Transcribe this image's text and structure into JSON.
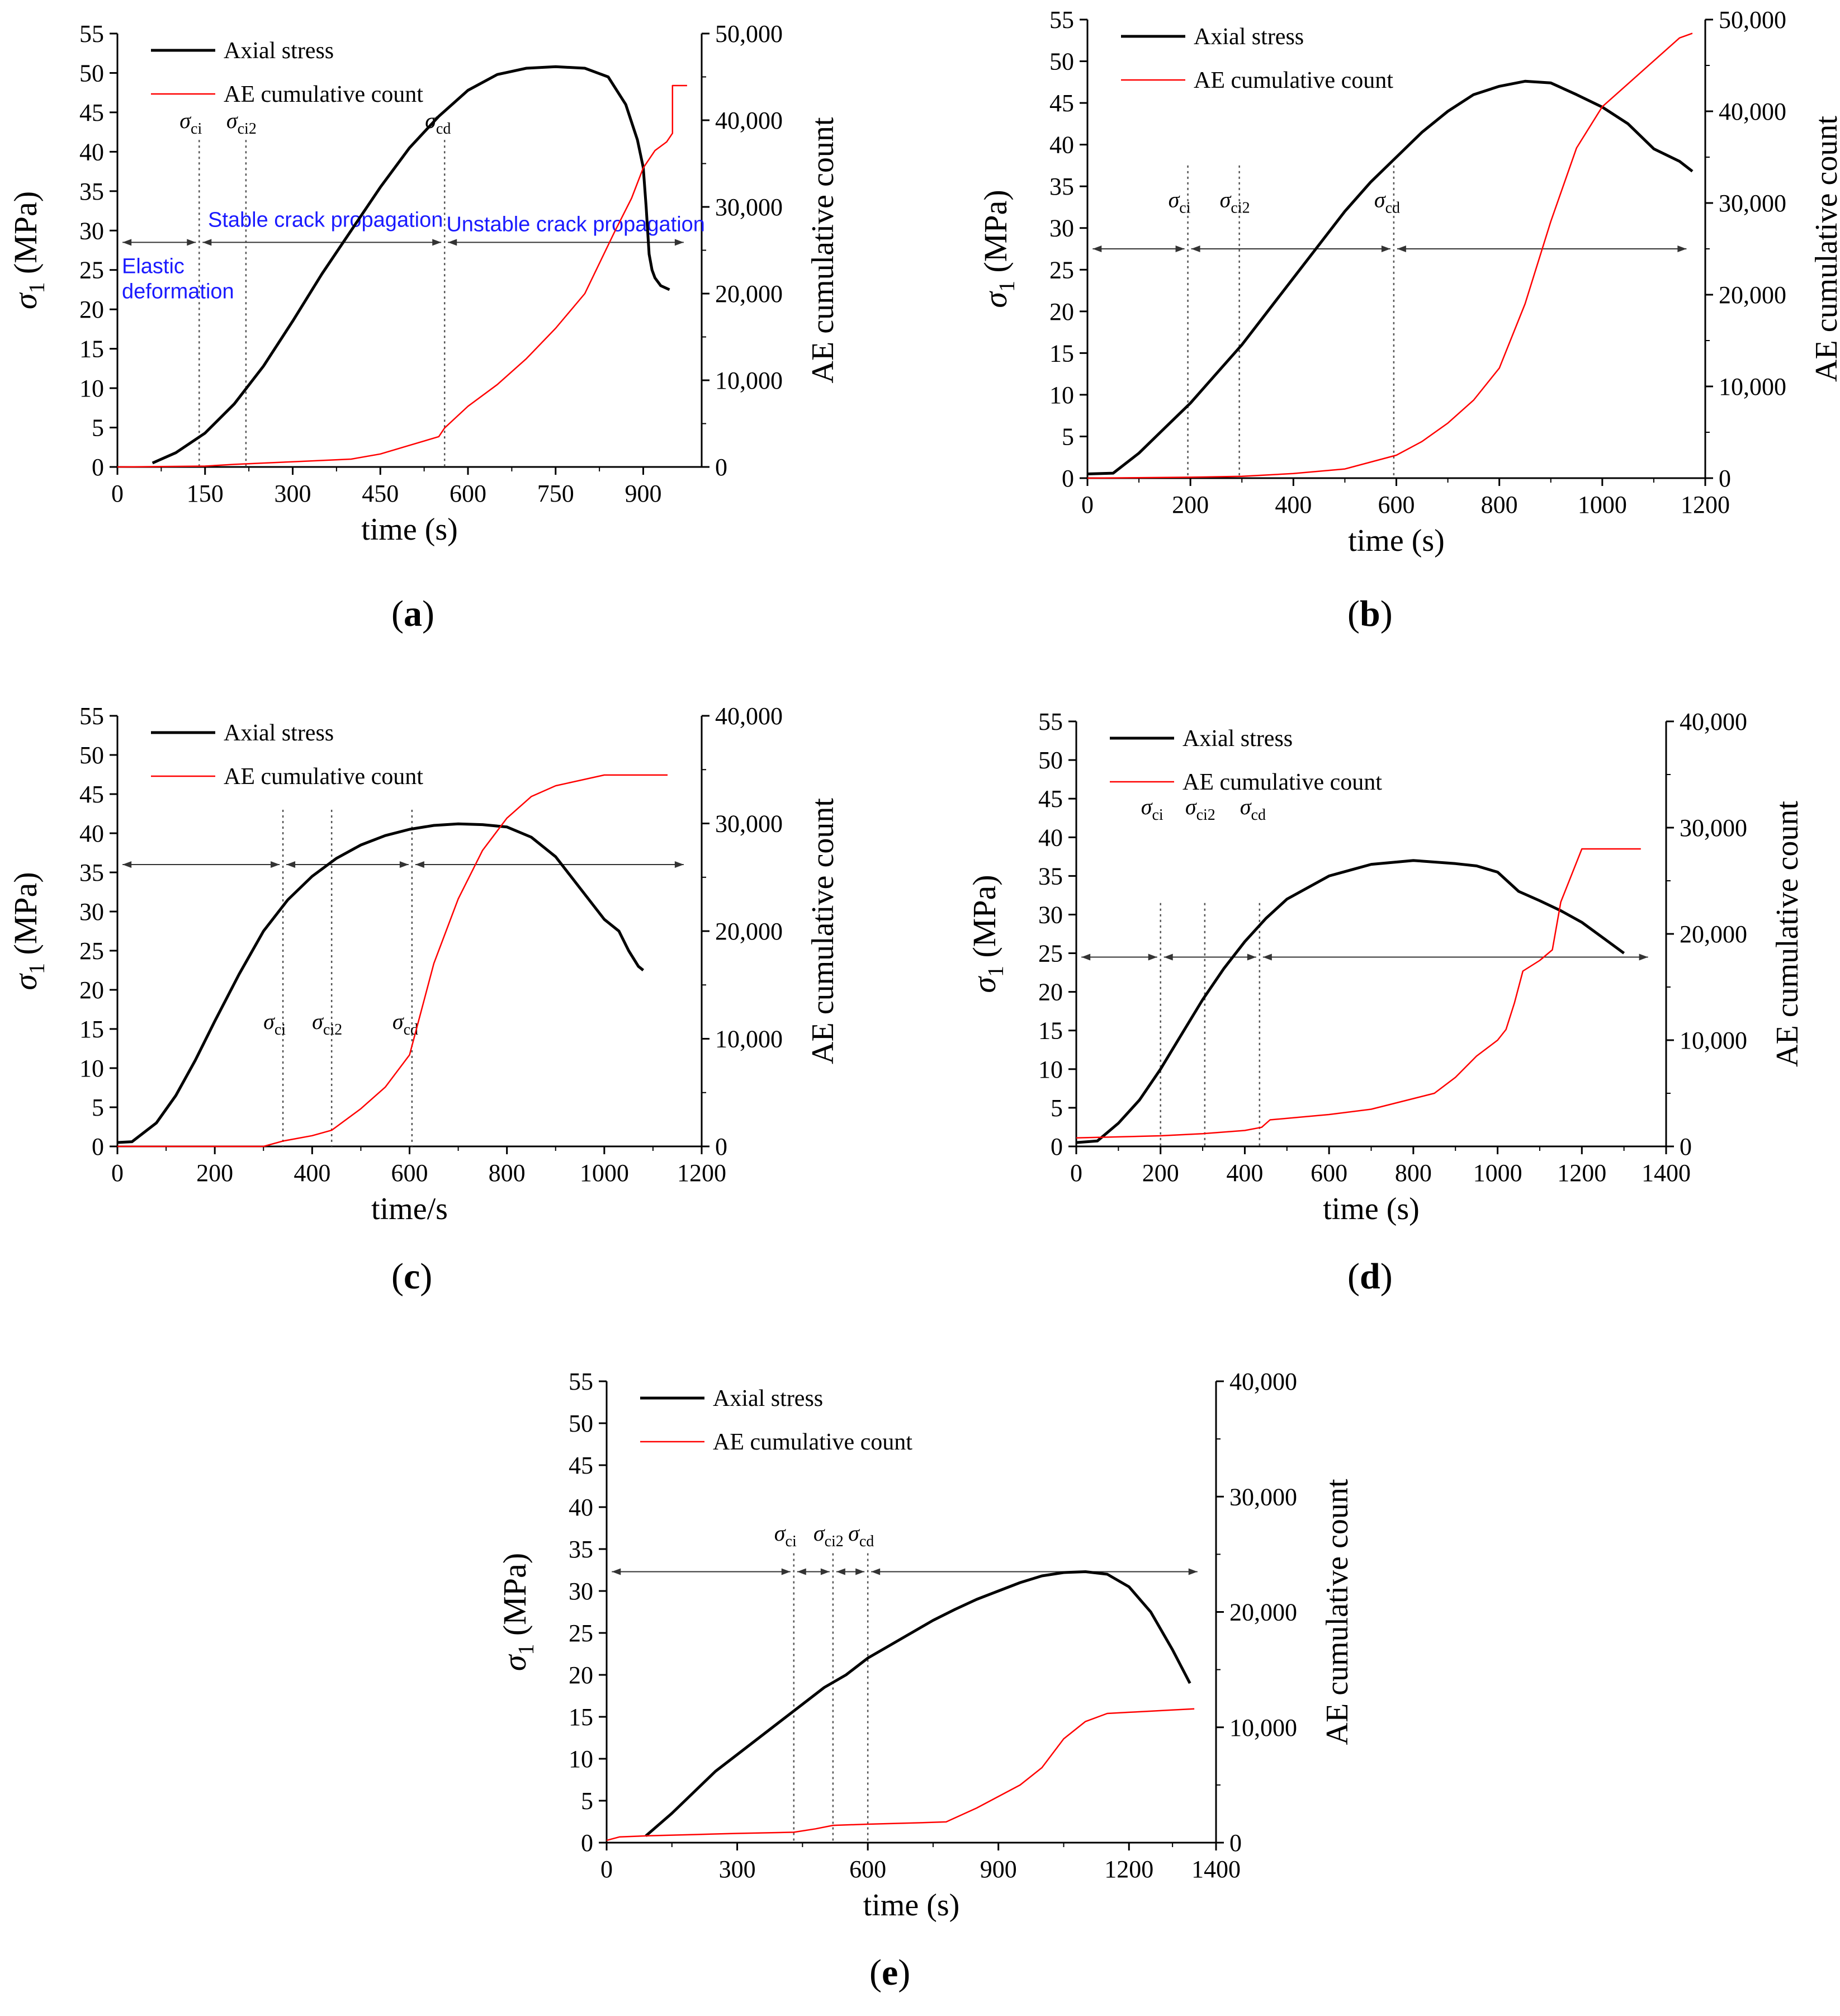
{
  "colors": {
    "stress": "#000000",
    "ae": "#ff0000",
    "annotation": "#1a1aff",
    "axis": "#000000"
  },
  "chart_data": [
    {
      "id": "a",
      "caption": "a",
      "type": "line",
      "xlabel": "time (s)",
      "ylabel_left": "σ1 (MPa)",
      "ylabel_left_symbol": "σ",
      "ylabel_left_sub": "1",
      "ylabel_left_unit": "(MPa)",
      "ylabel_right": "AE cumulative count",
      "xlim": [
        0,
        1000
      ],
      "xticks": [
        0,
        150,
        300,
        450,
        600,
        750,
        900
      ],
      "xtick_labels": [
        "0",
        "150",
        "300",
        "450",
        "600",
        "750",
        "900"
      ],
      "ylim_left": [
        0,
        55
      ],
      "yticks_left": [
        0,
        5,
        10,
        15,
        20,
        25,
        30,
        35,
        40,
        45,
        50,
        55
      ],
      "ylim_right": [
        0,
        50000
      ],
      "yticks_right": [
        0,
        10000,
        20000,
        30000,
        40000,
        50000
      ],
      "ytick_labels_right": [
        "0",
        "10,000",
        "20,000",
        "30,000",
        "40,000",
        "50,000"
      ],
      "legend": [
        "Axial stress",
        "AE cumulative count"
      ],
      "thresholds": [
        {
          "label": "σci",
          "symbol": "σ",
          "sub": "ci",
          "x": 140
        },
        {
          "label": "σci2",
          "symbol": "σ",
          "sub": "ci2",
          "x": 220
        },
        {
          "label": "σcd",
          "symbol": "σ",
          "sub": "cd",
          "x": 560
        }
      ],
      "arrow_y": 28.5,
      "stage_labels": [
        "Elastic",
        "deformation",
        "Stable crack propagation",
        "Unstable crack propagation"
      ],
      "series": [
        {
          "name": "Axial stress",
          "axis": "left",
          "x": [
            60,
            100,
            150,
            200,
            250,
            300,
            350,
            400,
            450,
            500,
            550,
            600,
            650,
            700,
            750,
            800,
            840,
            870,
            890,
            900,
            905,
            910,
            915,
            920,
            930,
            945
          ],
          "y": [
            0.5,
            1.8,
            4.3,
            8,
            12.8,
            18.5,
            24.5,
            30,
            35.5,
            40.5,
            44.5,
            47.8,
            49.8,
            50.6,
            50.8,
            50.6,
            49.5,
            46,
            41.5,
            38,
            33,
            27,
            25,
            24,
            23,
            22.5
          ]
        },
        {
          "name": "AE cumulative count",
          "axis": "right",
          "x": [
            0,
            150,
            200,
            300,
            400,
            450,
            500,
            550,
            560,
            600,
            650,
            700,
            750,
            800,
            850,
            880,
            900,
            920,
            940,
            950,
            950,
            970,
            975
          ],
          "y": [
            0,
            100,
            300,
            600,
            900,
            1500,
            2500,
            3500,
            4500,
            7000,
            9500,
            12500,
            16000,
            20000,
            27000,
            31000,
            34500,
            36500,
            37500,
            38500,
            44000,
            44000,
            44000
          ]
        }
      ]
    },
    {
      "id": "b",
      "caption": "b",
      "type": "line",
      "xlabel": "time (s)",
      "ylabel_left": "σ1 (MPa)",
      "ylabel_left_symbol": "σ",
      "ylabel_left_sub": "1",
      "ylabel_left_unit": "(MPa)",
      "ylabel_right": "AE cumulative count",
      "xlim": [
        0,
        1200
      ],
      "xticks": [
        0,
        200,
        400,
        600,
        800,
        1000,
        1200
      ],
      "xtick_labels": [
        "0",
        "200",
        "400",
        "600",
        "800",
        "1000",
        "1200"
      ],
      "ylim_left": [
        0,
        55
      ],
      "yticks_left": [
        0,
        5,
        10,
        15,
        20,
        25,
        30,
        35,
        40,
        45,
        50,
        55
      ],
      "ylim_right": [
        0,
        50000
      ],
      "yticks_right": [
        0,
        10000,
        20000,
        30000,
        40000,
        50000
      ],
      "ytick_labels_right": [
        "0",
        "10,000",
        "20,000",
        "30,000",
        "40,000",
        "50,000"
      ],
      "legend": [
        "Axial stress",
        "AE cumulative count"
      ],
      "thresholds": [
        {
          "label": "σci",
          "symbol": "σ",
          "sub": "ci",
          "x": 195
        },
        {
          "label": "σci2",
          "symbol": "σ",
          "sub": "ci2",
          "x": 295
        },
        {
          "label": "σcd",
          "symbol": "σ",
          "sub": "cd",
          "x": 595
        }
      ],
      "arrow_y": 27.5,
      "stage_labels": [],
      "series": [
        {
          "name": "Axial stress",
          "axis": "left",
          "x": [
            0,
            50,
            100,
            150,
            200,
            250,
            300,
            350,
            400,
            450,
            500,
            550,
            600,
            650,
            700,
            750,
            800,
            850,
            900,
            950,
            1000,
            1050,
            1100,
            1150,
            1175
          ],
          "y": [
            0.5,
            0.6,
            3,
            6,
            9,
            12.5,
            16,
            20,
            24,
            28,
            32,
            35.5,
            38.5,
            41.5,
            44,
            46,
            47,
            47.6,
            47.4,
            46,
            44.5,
            42.5,
            39.5,
            38,
            36.8
          ]
        },
        {
          "name": "AE cumulative count",
          "axis": "right",
          "x": [
            0,
            200,
            300,
            400,
            500,
            600,
            650,
            700,
            750,
            800,
            850,
            900,
            950,
            1000,
            1050,
            1100,
            1150,
            1175
          ],
          "y": [
            0,
            100,
            200,
            500,
            1000,
            2500,
            4000,
            6000,
            8500,
            12000,
            19000,
            28000,
            36000,
            40500,
            43000,
            45500,
            48000,
            48500
          ]
        }
      ]
    },
    {
      "id": "c",
      "caption": "c",
      "type": "line",
      "xlabel": "time/s",
      "ylabel_left": "σ1 (MPa)",
      "ylabel_left_symbol": "σ",
      "ylabel_left_sub": "1",
      "ylabel_left_unit": "(MPa)",
      "ylabel_right": "AE cumulative count",
      "xlim": [
        0,
        1200
      ],
      "xticks": [
        0,
        200,
        400,
        600,
        800,
        1000,
        1200
      ],
      "xtick_labels": [
        "0",
        "200",
        "400",
        "600",
        "800",
        "1000",
        "1200"
      ],
      "ylim_left": [
        0,
        55
      ],
      "yticks_left": [
        0,
        5,
        10,
        15,
        20,
        25,
        30,
        35,
        40,
        45,
        50,
        55
      ],
      "ylim_right": [
        0,
        40000
      ],
      "yticks_right": [
        0,
        10000,
        20000,
        30000,
        40000
      ],
      "ytick_labels_right": [
        "0",
        "10,000",
        "20,000",
        "30,000",
        "40,000"
      ],
      "legend": [
        "Axial stress",
        "AE cumulative count"
      ],
      "thresholds": [
        {
          "label": "σci",
          "symbol": "σ",
          "sub": "ci",
          "x": 340
        },
        {
          "label": "σci2",
          "symbol": "σ",
          "sub": "ci2",
          "x": 440
        },
        {
          "label": "σcd",
          "symbol": "σ",
          "sub": "cd",
          "x": 605
        }
      ],
      "arrow_y": 36,
      "stage_labels": [],
      "series": [
        {
          "name": "Axial stress",
          "axis": "left",
          "x": [
            0,
            30,
            80,
            120,
            160,
            200,
            250,
            300,
            350,
            400,
            450,
            500,
            550,
            600,
            650,
            700,
            750,
            800,
            850,
            900,
            950,
            1000,
            1030,
            1050,
            1070,
            1080
          ],
          "y": [
            0.5,
            0.6,
            3,
            6.5,
            11,
            16,
            22,
            27.5,
            31.5,
            34.5,
            36.8,
            38.5,
            39.7,
            40.5,
            41,
            41.2,
            41.1,
            40.8,
            39.5,
            37,
            33,
            29,
            27.5,
            25,
            23,
            22.5
          ]
        },
        {
          "name": "AE cumulative count",
          "axis": "right",
          "x": [
            0,
            300,
            340,
            400,
            440,
            500,
            550,
            600,
            650,
            700,
            750,
            800,
            850,
            900,
            950,
            1000,
            1130
          ],
          "y": [
            0,
            0,
            500,
            1000,
            1500,
            3500,
            5500,
            8500,
            17000,
            23000,
            27500,
            30500,
            32500,
            33500,
            34000,
            34500,
            34500
          ]
        }
      ]
    },
    {
      "id": "d",
      "caption": "d",
      "type": "line",
      "xlabel": "time (s)",
      "ylabel_left": "σ1 (MPa)",
      "ylabel_left_symbol": "σ",
      "ylabel_left_sub": "1",
      "ylabel_left_unit": "(MPa)",
      "ylabel_right": "AE cumulative count",
      "xlim": [
        0,
        1400
      ],
      "xticks": [
        0,
        200,
        400,
        600,
        800,
        1000,
        1200,
        1400
      ],
      "xtick_labels": [
        "0",
        "200",
        "400",
        "600",
        "800",
        "1000",
        "1200",
        "1400"
      ],
      "ylim_left": [
        0,
        55
      ],
      "yticks_left": [
        0,
        5,
        10,
        15,
        20,
        25,
        30,
        35,
        40,
        45,
        50,
        55
      ],
      "ylim_right": [
        0,
        40000
      ],
      "yticks_right": [
        0,
        10000,
        20000,
        30000,
        40000
      ],
      "ytick_labels_right": [
        "0",
        "10,000",
        "20,000",
        "30,000",
        "40,000"
      ],
      "legend": [
        "Axial stress",
        "AE cumulative count"
      ],
      "thresholds": [
        {
          "label": "σci",
          "symbol": "σ",
          "sub": "ci",
          "x": 200
        },
        {
          "label": "σci2",
          "symbol": "σ",
          "sub": "ci2",
          "x": 305
        },
        {
          "label": "σcd",
          "symbol": "σ",
          "sub": "cd",
          "x": 435
        }
      ],
      "arrow_y": 24.5,
      "stage_labels": [],
      "series": [
        {
          "name": "Axial stress",
          "axis": "left",
          "x": [
            0,
            50,
            100,
            150,
            200,
            250,
            300,
            350,
            400,
            450,
            500,
            600,
            700,
            800,
            900,
            950,
            1000,
            1050,
            1100,
            1150,
            1200,
            1250,
            1300
          ],
          "y": [
            0.5,
            0.7,
            3,
            6,
            10,
            14.5,
            19,
            23,
            26.5,
            29.5,
            32,
            35,
            36.5,
            37,
            36.6,
            36.3,
            35.5,
            33,
            31.8,
            30.5,
            29,
            27,
            25
          ]
        },
        {
          "name": "AE cumulative count",
          "axis": "right",
          "x": [
            0,
            200,
            300,
            400,
            440,
            460,
            600,
            700,
            800,
            850,
            900,
            950,
            1000,
            1020,
            1040,
            1060,
            1100,
            1130,
            1150,
            1200,
            1250,
            1340
          ],
          "y": [
            800,
            1000,
            1200,
            1500,
            1800,
            2500,
            3000,
            3500,
            4500,
            5000,
            6500,
            8500,
            10000,
            11000,
            13500,
            16500,
            17500,
            18500,
            23000,
            28000,
            28000,
            28000
          ]
        }
      ]
    },
    {
      "id": "e",
      "caption": "e",
      "type": "line",
      "xlabel": "time (s)",
      "ylabel_left": "σ1 (MPa)",
      "ylabel_left_symbol": "σ",
      "ylabel_left_sub": "1",
      "ylabel_left_unit": "(MPa)",
      "ylabel_right": "AE cumulative count",
      "xlim": [
        0,
        1400
      ],
      "xticks": [
        0,
        300,
        600,
        900,
        1200,
        1400
      ],
      "xtick_labels": [
        "0",
        "300",
        "600",
        "900",
        "1200",
        "1400"
      ],
      "ylim_left": [
        0,
        55
      ],
      "yticks_left": [
        0,
        5,
        10,
        15,
        20,
        25,
        30,
        35,
        40,
        45,
        50,
        55
      ],
      "ylim_right": [
        0,
        40000
      ],
      "yticks_right": [
        0,
        10000,
        20000,
        30000,
        40000
      ],
      "ytick_labels_right": [
        "0",
        "10,000",
        "20,000",
        "30,000",
        "40,000"
      ],
      "legend": [
        "Axial stress",
        "AE cumulative count"
      ],
      "thresholds": [
        {
          "label": "σci",
          "symbol": "σ",
          "sub": "ci",
          "x": 430
        },
        {
          "label": "σci2",
          "symbol": "σ",
          "sub": "ci2",
          "x": 520
        },
        {
          "label": "σcd",
          "symbol": "σ",
          "sub": "cd",
          "x": 600
        }
      ],
      "arrow_y": 32.3,
      "stage_labels": [],
      "series": [
        {
          "name": "Axial stress",
          "axis": "left",
          "x": [
            90,
            150,
            200,
            250,
            300,
            350,
            400,
            450,
            500,
            550,
            600,
            650,
            700,
            750,
            800,
            850,
            900,
            950,
            1000,
            1050,
            1100,
            1150,
            1200,
            1250,
            1300,
            1340
          ],
          "y": [
            0.8,
            3.5,
            6,
            8.5,
            10.5,
            12.5,
            14.5,
            16.5,
            18.5,
            20,
            22,
            23.5,
            25,
            26.5,
            27.8,
            29,
            30,
            31,
            31.8,
            32.2,
            32.3,
            32,
            30.5,
            27.5,
            23,
            19
          ]
        },
        {
          "name": "AE cumulative count",
          "axis": "right",
          "x": [
            0,
            30,
            100,
            200,
            300,
            430,
            480,
            520,
            600,
            700,
            780,
            850,
            900,
            950,
            1000,
            1050,
            1100,
            1150,
            1200,
            1250,
            1300,
            1350
          ],
          "y": [
            200,
            500,
            600,
            700,
            800,
            900,
            1200,
            1500,
            1600,
            1700,
            1800,
            3000,
            4000,
            5000,
            6500,
            9000,
            10500,
            11200,
            11300,
            11400,
            11500,
            11600
          ]
        }
      ]
    }
  ]
}
